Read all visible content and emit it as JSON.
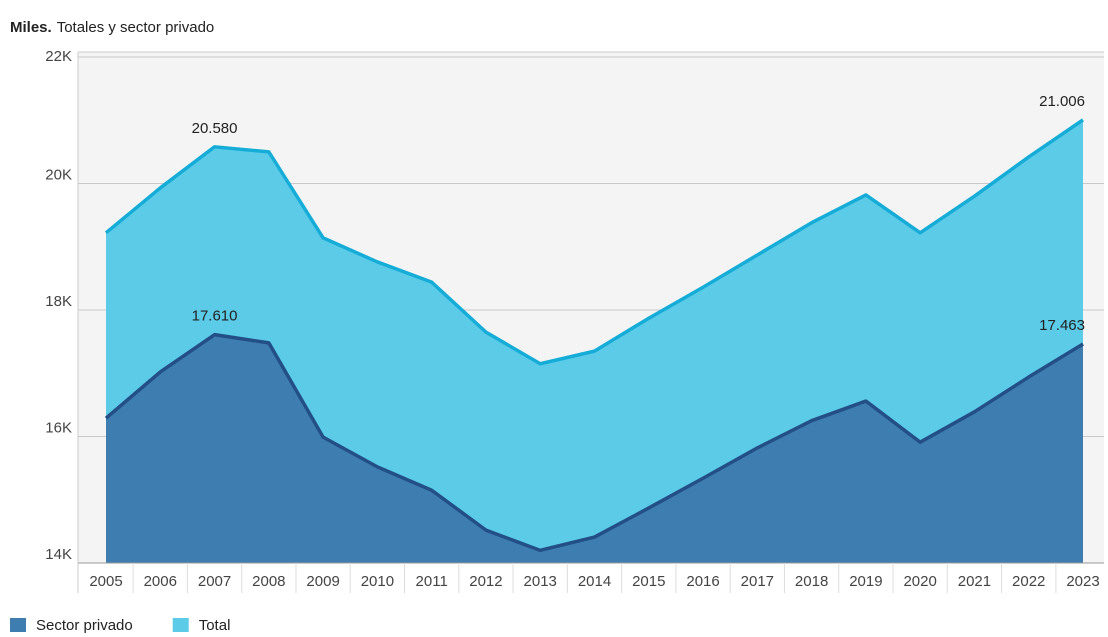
{
  "chart_data": {
    "type": "area",
    "title": "Miles.",
    "subtitle": "Totales y sector privado",
    "categories": [
      "2005",
      "2006",
      "2007",
      "2008",
      "2009",
      "2010",
      "2011",
      "2012",
      "2013",
      "2014",
      "2015",
      "2016",
      "2017",
      "2018",
      "2019",
      "2020",
      "2021",
      "2022",
      "2023"
    ],
    "series": [
      {
        "name": "Total",
        "color": "#5bcbe8",
        "line_color": "#16acd8",
        "values": [
          19220,
          19930,
          20580,
          20500,
          19140,
          18760,
          18440,
          17650,
          17150,
          17350,
          17870,
          18360,
          18870,
          19380,
          19820,
          19220,
          19800,
          20420,
          21006
        ],
        "value_labels": [
          null,
          null,
          "20.580",
          null,
          null,
          null,
          null,
          null,
          null,
          null,
          null,
          null,
          null,
          null,
          null,
          null,
          null,
          null,
          "21.006"
        ]
      },
      {
        "name": "Sector privado",
        "color": "#3d7db0",
        "line_color": "#234f86",
        "values": [
          16290,
          17020,
          17610,
          17480,
          15990,
          15520,
          15150,
          14520,
          14200,
          14410,
          14870,
          15340,
          15820,
          16250,
          16560,
          15910,
          16390,
          16940,
          17463
        ],
        "value_labels": [
          null,
          null,
          "17.610",
          null,
          null,
          null,
          null,
          null,
          null,
          null,
          null,
          null,
          null,
          null,
          null,
          null,
          null,
          null,
          "17.463"
        ]
      }
    ],
    "legend_order": [
      1,
      0
    ],
    "ylim": [
      14000,
      22000
    ],
    "yticks": [
      {
        "value": 14000,
        "label": "14K"
      },
      {
        "value": 16000,
        "label": "16K"
      },
      {
        "value": 18000,
        "label": "18K"
      },
      {
        "value": 20000,
        "label": "20K"
      },
      {
        "value": 22000,
        "label": "22K"
      }
    ],
    "grid": true
  }
}
